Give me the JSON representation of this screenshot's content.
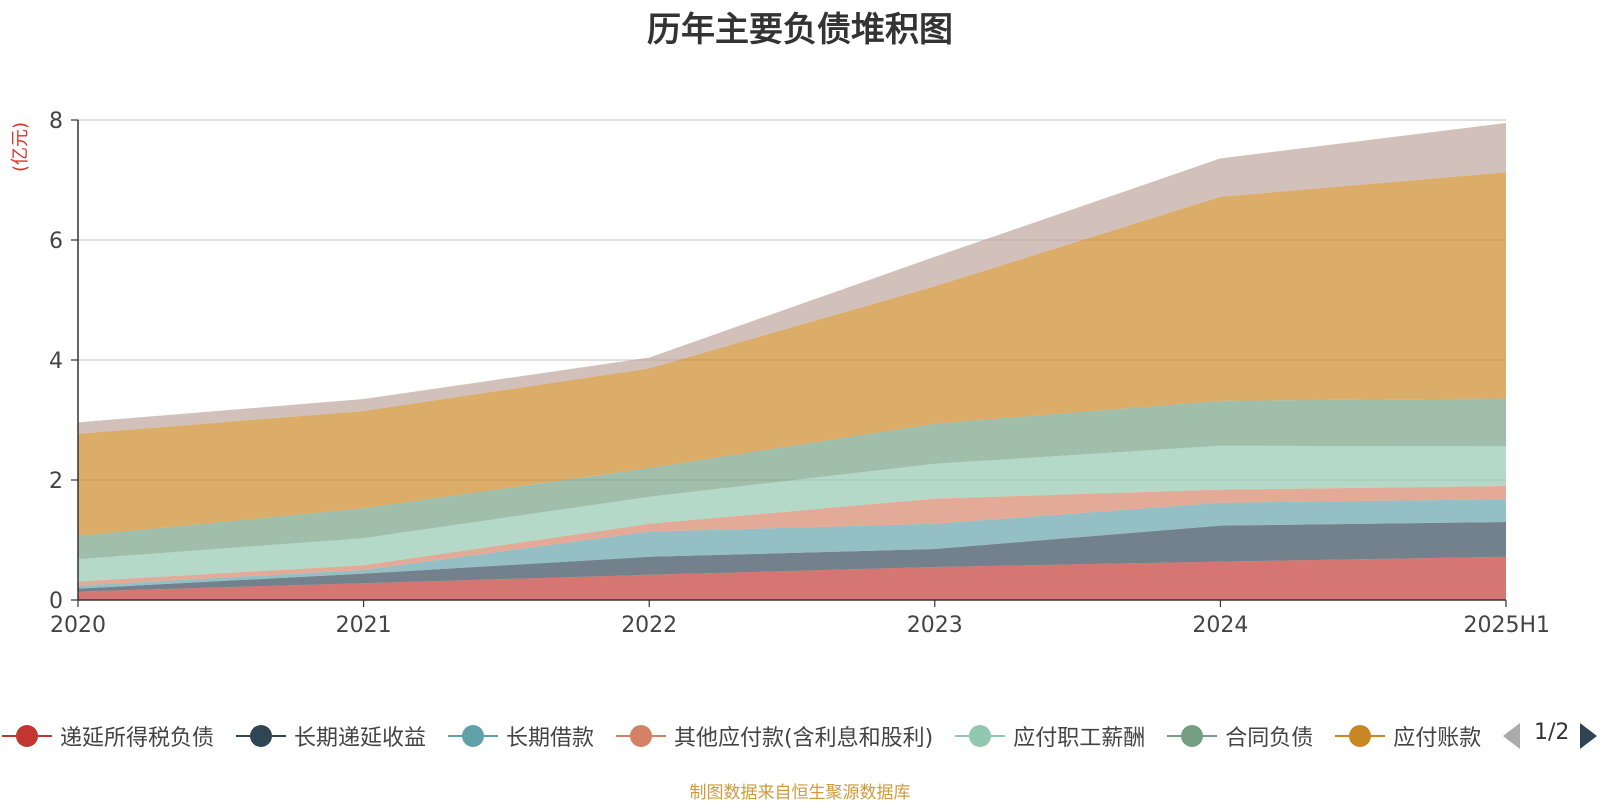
{
  "title": "历年主要负债堆积图",
  "unit": "(亿元)",
  "source": "制图数据来自恒生聚源数据库",
  "pager": "1/2",
  "legend_items": [
    {
      "label": "递延所得税负债",
      "color": "#c23531"
    },
    {
      "label": "长期递延收益",
      "color": "#2f4554"
    },
    {
      "label": "长期借款",
      "color": "#61a0a8"
    },
    {
      "label": "其他应付款(含利息和股利)",
      "color": "#d48265"
    },
    {
      "label": "应付职工薪酬",
      "color": "#91c7ae"
    },
    {
      "label": "合同负债",
      "color": "#749f83"
    },
    {
      "label": "应付账款",
      "color": "#ca8622"
    }
  ],
  "chart_data": {
    "type": "area",
    "stacked": true,
    "categories": [
      "2020",
      "2021",
      "2022",
      "2023",
      "2024",
      "2025H1"
    ],
    "ylim": [
      0,
      8
    ],
    "yticks": [
      "0",
      "2",
      "4",
      "6",
      "8"
    ],
    "grid": true,
    "series": [
      {
        "name": "递延所得税负债",
        "color": "#c23531",
        "values": [
          0.14,
          0.28,
          0.42,
          0.55,
          0.64,
          0.72
        ]
      },
      {
        "name": "长期递延收益",
        "color": "#2f4554",
        "values": [
          0.05,
          0.16,
          0.3,
          0.3,
          0.6,
          0.58
        ]
      },
      {
        "name": "长期借款",
        "color": "#61a0a8",
        "values": [
          0.05,
          0.06,
          0.42,
          0.42,
          0.38,
          0.38
        ]
      },
      {
        "name": "其他应付款(含利息和股利)",
        "color": "#d48265",
        "values": [
          0.07,
          0.08,
          0.13,
          0.42,
          0.22,
          0.22
        ]
      },
      {
        "name": "应付职工薪酬",
        "color": "#91c7ae",
        "values": [
          0.37,
          0.45,
          0.45,
          0.58,
          0.73,
          0.66
        ]
      },
      {
        "name": "合同负债",
        "color": "#749f83",
        "values": [
          0.39,
          0.5,
          0.48,
          0.67,
          0.75,
          0.8
        ]
      },
      {
        "name": "",
        "color": "#ca8622",
        "values": [
          1.7,
          1.62,
          1.66,
          2.29,
          3.4,
          3.77
        ]
      },
      {
        "name": "",
        "color": "#bda29a",
        "values": [
          0.19,
          0.2,
          0.18,
          0.49,
          0.64,
          0.82
        ]
      }
    ]
  }
}
